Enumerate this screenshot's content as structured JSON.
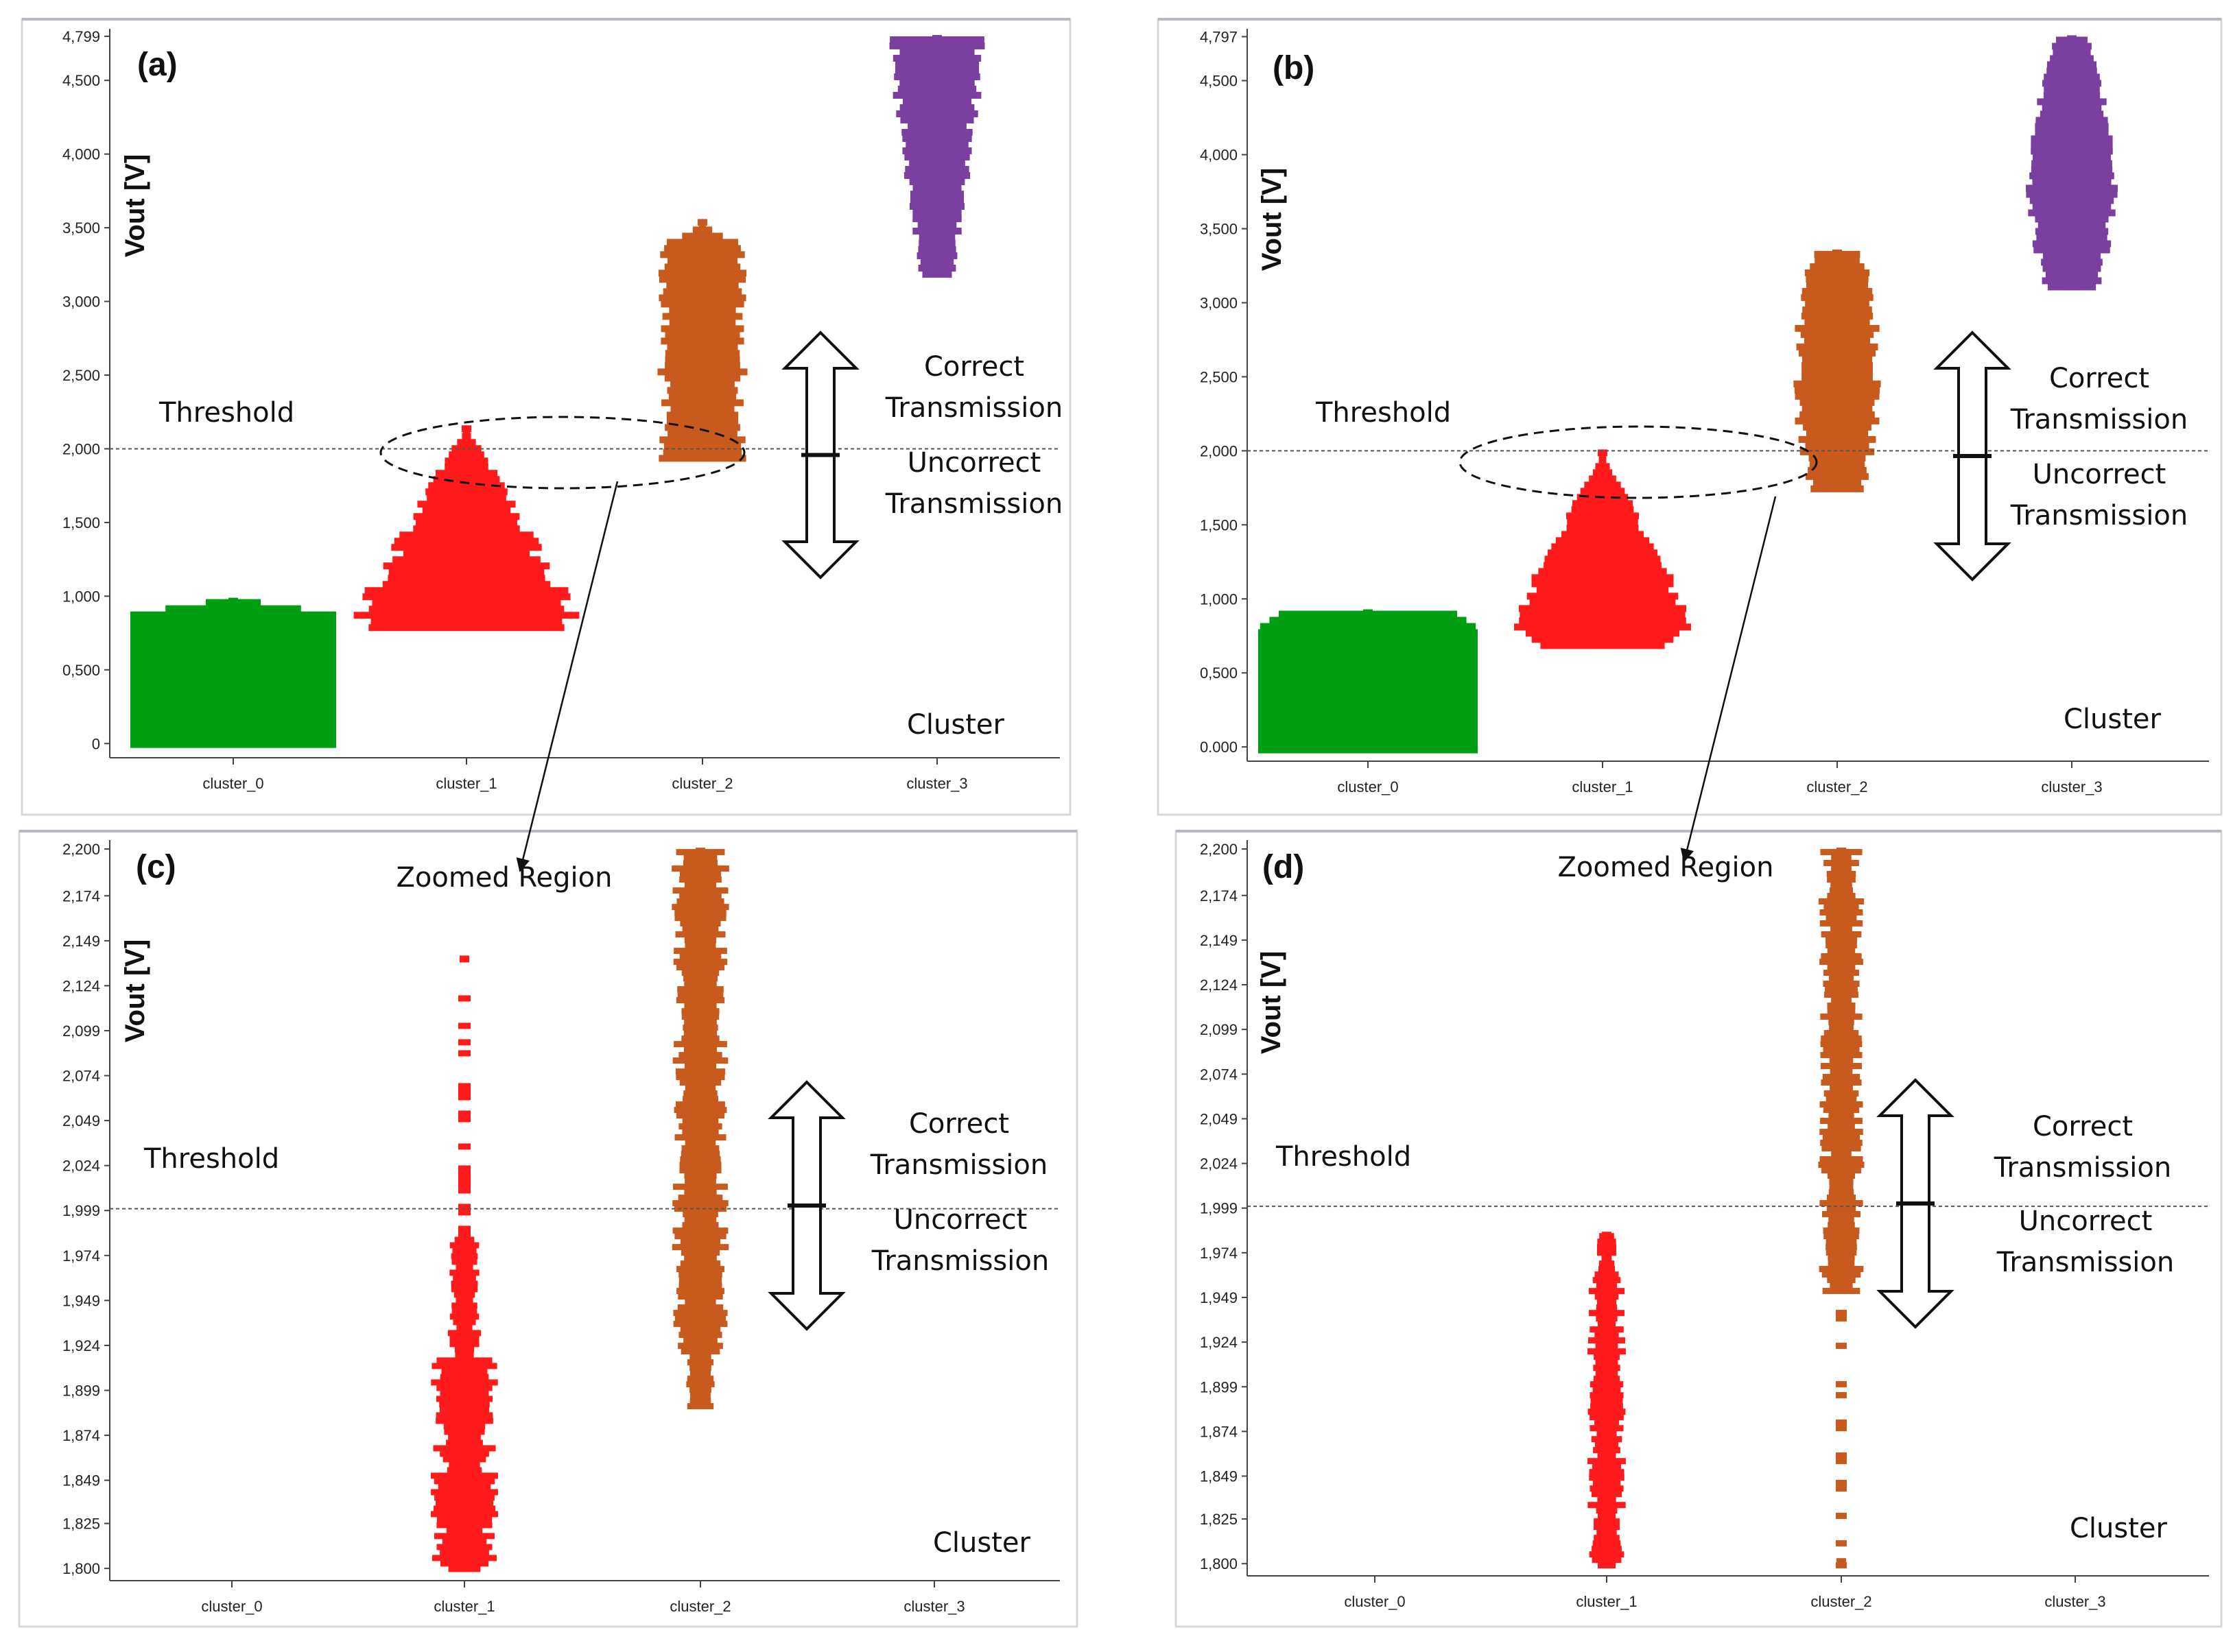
{
  "figure": {
    "threshold_label": "Threshold",
    "correct_label_1": "Correct",
    "correct_label_2": "Transmission",
    "uncorrect_label_1": "Uncorrect",
    "uncorrect_label_2": "Transmission",
    "cluster_label": "Cluster",
    "zoomed_label": "Zoomed Region",
    "ylabel": "Vout [V]"
  },
  "chart_data": [
    {
      "id": "a",
      "panel_label": "(a)",
      "type": "scatter",
      "categories": [
        "cluster_0",
        "cluster_1",
        "cluster_2",
        "cluster_3"
      ],
      "ylabel": "Vout [V]",
      "xlabel": "Cluster",
      "ylim": [
        -0.05,
        4.85
      ],
      "yticks": [
        0,
        0.5,
        1.0,
        1.5,
        2.0,
        2.5,
        3.0,
        3.5,
        4.0,
        4.5,
        4.799
      ],
      "ytick_labels": [
        "0",
        "0,500",
        "1,000",
        "1,500",
        "2,000",
        "2,500",
        "3,000",
        "3,500",
        "4,000",
        "4,500",
        "4,799"
      ],
      "threshold": 2.0,
      "series": [
        {
          "name": "cluster_0",
          "color": "#009e12",
          "min": 0.0,
          "max": 0.98
        },
        {
          "name": "cluster_1",
          "color": "#ff1b1b",
          "min": 0.8,
          "max": 2.15
        },
        {
          "name": "cluster_2",
          "color": "#c85a1e",
          "min": 1.95,
          "max": 3.55
        },
        {
          "name": "cluster_3",
          "color": "#7b3fa0",
          "min": 3.2,
          "max": 4.799
        }
      ]
    },
    {
      "id": "b",
      "panel_label": "(b)",
      "type": "scatter",
      "categories": [
        "cluster_0",
        "cluster_1",
        "cluster_2",
        "cluster_3"
      ],
      "ylabel": "Vout [V]",
      "xlabel": "Cluster",
      "ylim": [
        -0.05,
        4.85
      ],
      "yticks": [
        0,
        0.5,
        1.0,
        1.5,
        2.0,
        2.5,
        3.0,
        3.5,
        4.0,
        4.5,
        4.797
      ],
      "ytick_labels": [
        "0.000",
        "0,500",
        "1,000",
        "1,500",
        "2,000",
        "2,500",
        "3,000",
        "3,500",
        "4,000",
        "4,500",
        "4,797"
      ],
      "threshold": 2.0,
      "series": [
        {
          "name": "cluster_0",
          "color": "#009e12",
          "min": 0.0,
          "max": 0.92
        },
        {
          "name": "cluster_1",
          "color": "#ff1b1b",
          "min": 0.68,
          "max": 2.0
        },
        {
          "name": "cluster_2",
          "color": "#c85a1e",
          "min": 1.75,
          "max": 3.35
        },
        {
          "name": "cluster_3",
          "color": "#7b3fa0",
          "min": 3.1,
          "max": 4.797
        }
      ]
    },
    {
      "id": "c",
      "panel_label": "(c)",
      "type": "scatter",
      "categories": [
        "cluster_0",
        "cluster_1",
        "cluster_2",
        "cluster_3"
      ],
      "ylabel": "Vout [V]",
      "xlabel": "Cluster",
      "ylim": [
        1.797,
        2.205
      ],
      "yticks": [
        1.8,
        1.825,
        1.849,
        1.874,
        1.899,
        1.924,
        1.949,
        1.974,
        1.999,
        2.024,
        2.049,
        2.074,
        2.099,
        2.124,
        2.149,
        2.174,
        2.2
      ],
      "ytick_labels": [
        "1,800",
        "1,825",
        "1,849",
        "1,874",
        "1,899",
        "1,924",
        "1,949",
        "1,974",
        "1,999",
        "2,024",
        "2,049",
        "2,074",
        "2,099",
        "2,124",
        "2,149",
        "2,174",
        "2,200"
      ],
      "threshold": 2.0,
      "series": [
        {
          "name": "cluster_1",
          "color": "#ff1b1b",
          "min": 1.8,
          "max": 2.14
        },
        {
          "name": "cluster_2",
          "color": "#c85a1e",
          "min": 1.89,
          "max": 2.2
        }
      ]
    },
    {
      "id": "d",
      "panel_label": "(d)",
      "type": "scatter",
      "categories": [
        "cluster_0",
        "cluster_1",
        "cluster_2",
        "cluster_3"
      ],
      "ylabel": "Vout [V]",
      "xlabel": "Cluster",
      "ylim": [
        1.797,
        2.205
      ],
      "yticks": [
        1.8,
        1.825,
        1.849,
        1.874,
        1.899,
        1.924,
        1.949,
        1.974,
        1.999,
        2.024,
        2.049,
        2.074,
        2.099,
        2.124,
        2.149,
        2.174,
        2.2
      ],
      "ytick_labels": [
        "1,800",
        "1,825",
        "1,849",
        "1,874",
        "1,899",
        "1,924",
        "1,949",
        "1,974",
        "1,999",
        "2,024",
        "2,049",
        "2,074",
        "2,099",
        "2,124",
        "2,149",
        "2,174",
        "2,200"
      ],
      "threshold": 2.0,
      "series": [
        {
          "name": "cluster_1",
          "color": "#ff1b1b",
          "min": 1.8,
          "max": 1.985
        },
        {
          "name": "cluster_2",
          "color": "#c85a1e",
          "min": 1.8,
          "max": 2.2
        }
      ]
    }
  ]
}
